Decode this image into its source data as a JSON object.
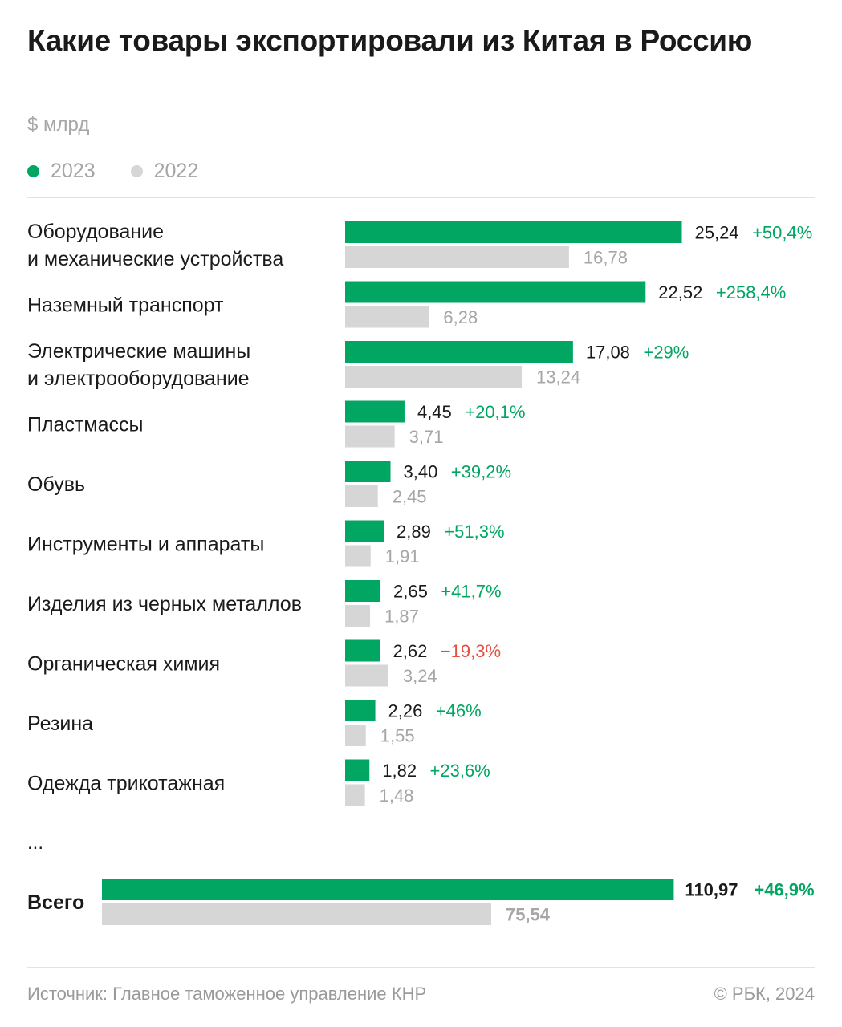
{
  "title": "Какие товары экспортировали из Китая в Россию",
  "unit": "$ млрд",
  "colors": {
    "y2023": "#00a661",
    "y2022": "#d6d6d6",
    "positive": "#00a661",
    "negative": "#e4503f"
  },
  "footer": {
    "source": "Источник: Главное таможенное управление КНР",
    "credit": "© РБК, 2024"
  },
  "chart_data": {
    "type": "bar",
    "orientation": "horizontal",
    "legend": [
      "2023",
      "2022"
    ],
    "categories": [
      [
        "Оборудование",
        "и механические устройства"
      ],
      [
        "Наземный транспорт"
      ],
      [
        "Электрические машины",
        "и электрооборудование"
      ],
      [
        "Пластмассы"
      ],
      [
        "Обувь"
      ],
      [
        "Инструменты и аппараты"
      ],
      [
        "Изделия из черных металлов"
      ],
      [
        "Органическая химия"
      ],
      [
        "Резина"
      ],
      [
        "Одежда трикотажная"
      ]
    ],
    "series": [
      {
        "name": "2023",
        "values": [
          25.24,
          22.52,
          17.08,
          4.45,
          3.4,
          2.89,
          2.65,
          2.62,
          2.26,
          1.82
        ],
        "labels": [
          "25,24",
          "22,52",
          "17,08",
          "4,45",
          "3,40",
          "2,89",
          "2,65",
          "2,62",
          "2,26",
          "1,82"
        ]
      },
      {
        "name": "2022",
        "values": [
          16.78,
          6.28,
          13.24,
          3.71,
          2.45,
          1.91,
          1.87,
          3.24,
          1.55,
          1.48
        ],
        "labels": [
          "16,78",
          "6,28",
          "13,24",
          "3,71",
          "2,45",
          "1,91",
          "1,87",
          "3,24",
          "1,55",
          "1,48"
        ]
      }
    ],
    "changes": [
      "+50,4%",
      "+258,4%",
      "+29%",
      "+20,1%",
      "+39,2%",
      "+51,3%",
      "+41,7%",
      "−19,3%",
      "+46%",
      "+23,6%"
    ],
    "ellipsis": "...",
    "total": {
      "label": "Всего",
      "value_2023": 110.97,
      "label_2023": "110,97",
      "value_2022": 75.54,
      "label_2022": "75,54",
      "change": "+46,9%"
    }
  }
}
